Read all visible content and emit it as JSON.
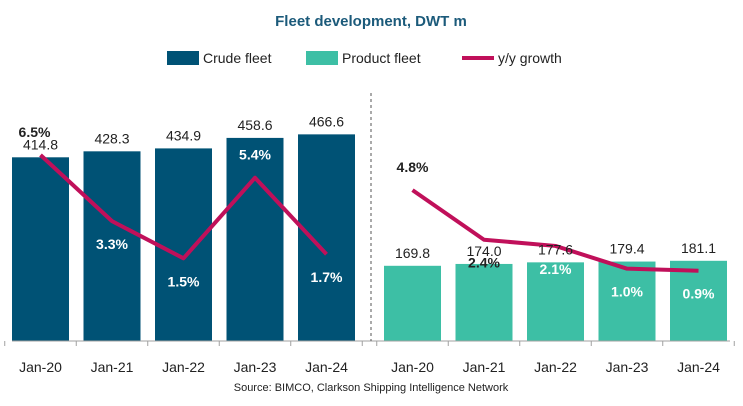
{
  "chart_data": {
    "type": "bar",
    "title": "Fleet development, DWT m",
    "source": "Source: BIMCO, Clarkson Shipping Intelligence Network",
    "legend": {
      "crude": "Crude fleet",
      "product": "Product fleet",
      "growth": "y/y growth"
    },
    "categories": [
      "Jan-20",
      "Jan-21",
      "Jan-22",
      "Jan-23",
      "Jan-24"
    ],
    "series": [
      {
        "name": "Crude fleet",
        "kind": "bar",
        "color": "#005275",
        "values": [
          414.8,
          428.3,
          434.9,
          458.6,
          466.6
        ],
        "value_labels": [
          "414.8",
          "428.3",
          "434.9",
          "458.6",
          "466.6"
        ],
        "growth": [
          6.5,
          3.3,
          1.5,
          5.4,
          1.7
        ],
        "growth_labels": [
          "6.5%",
          "3.3%",
          "1.5%",
          "5.4%",
          "1.7%"
        ]
      },
      {
        "name": "Product fleet",
        "kind": "bar",
        "color": "#3dbfa5",
        "values": [
          169.8,
          174.0,
          177.6,
          179.4,
          181.1
        ],
        "value_labels": [
          "169.8",
          "174.0",
          "177.6",
          "179.4",
          "181.1"
        ],
        "growth": [
          4.8,
          2.4,
          2.1,
          1.0,
          0.9
        ],
        "growth_labels": [
          "4.8%",
          "2.4%",
          "2.1%",
          "1.0%",
          "0.9%"
        ]
      }
    ],
    "growth_color": "#c0105a",
    "title_color": "#1b5a7a",
    "ylim_bars": [
      0,
      560
    ],
    "ylim_growth": [
      -2.5,
      9.5
    ],
    "grid": false
  }
}
